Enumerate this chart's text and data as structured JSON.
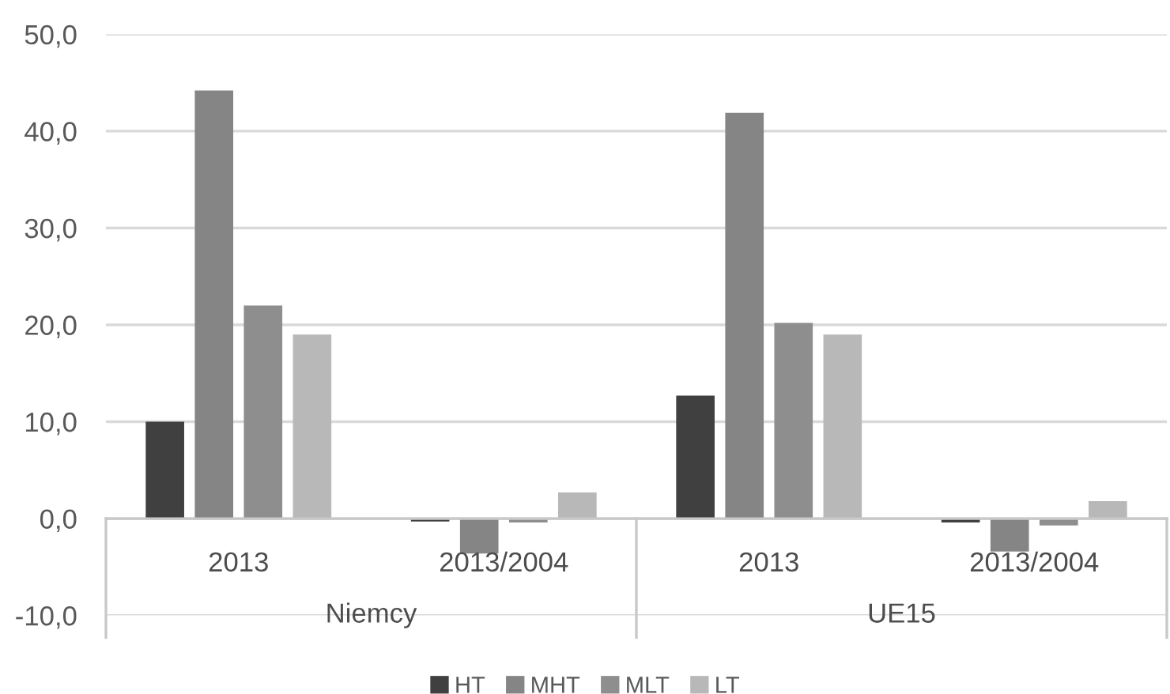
{
  "chart_data": {
    "type": "bar",
    "categories": [
      "2013",
      "2013/2004",
      "2013",
      "2013/2004"
    ],
    "series": [
      {
        "name": "HT",
        "color": "#404040",
        "values": [
          10.0,
          -0.3,
          12.7,
          -0.4
        ]
      },
      {
        "name": "MHT",
        "color": "#858585",
        "values": [
          44.2,
          -3.6,
          41.9,
          -3.4
        ]
      },
      {
        "name": "MLT",
        "color": "#8e8e8e",
        "values": [
          22.0,
          -0.4,
          20.2,
          -0.7
        ]
      },
      {
        "name": "LT",
        "color": "#b8b8b8",
        "values": [
          19.0,
          2.7,
          19.0,
          1.8
        ]
      }
    ],
    "ylim": [
      -10,
      50
    ],
    "yticks": [
      {
        "value": -10,
        "label": "-10,0"
      },
      {
        "value": 0,
        "label": "0,0"
      },
      {
        "value": 10,
        "label": "10,0"
      },
      {
        "value": 20,
        "label": "20,0"
      },
      {
        "value": 30,
        "label": "30,0"
      },
      {
        "value": 40,
        "label": "40,0"
      },
      {
        "value": 50,
        "label": "50,0"
      }
    ],
    "grid": "y",
    "legend": "bottom",
    "annotations": [
      "Niemcy",
      "UE15"
    ]
  }
}
